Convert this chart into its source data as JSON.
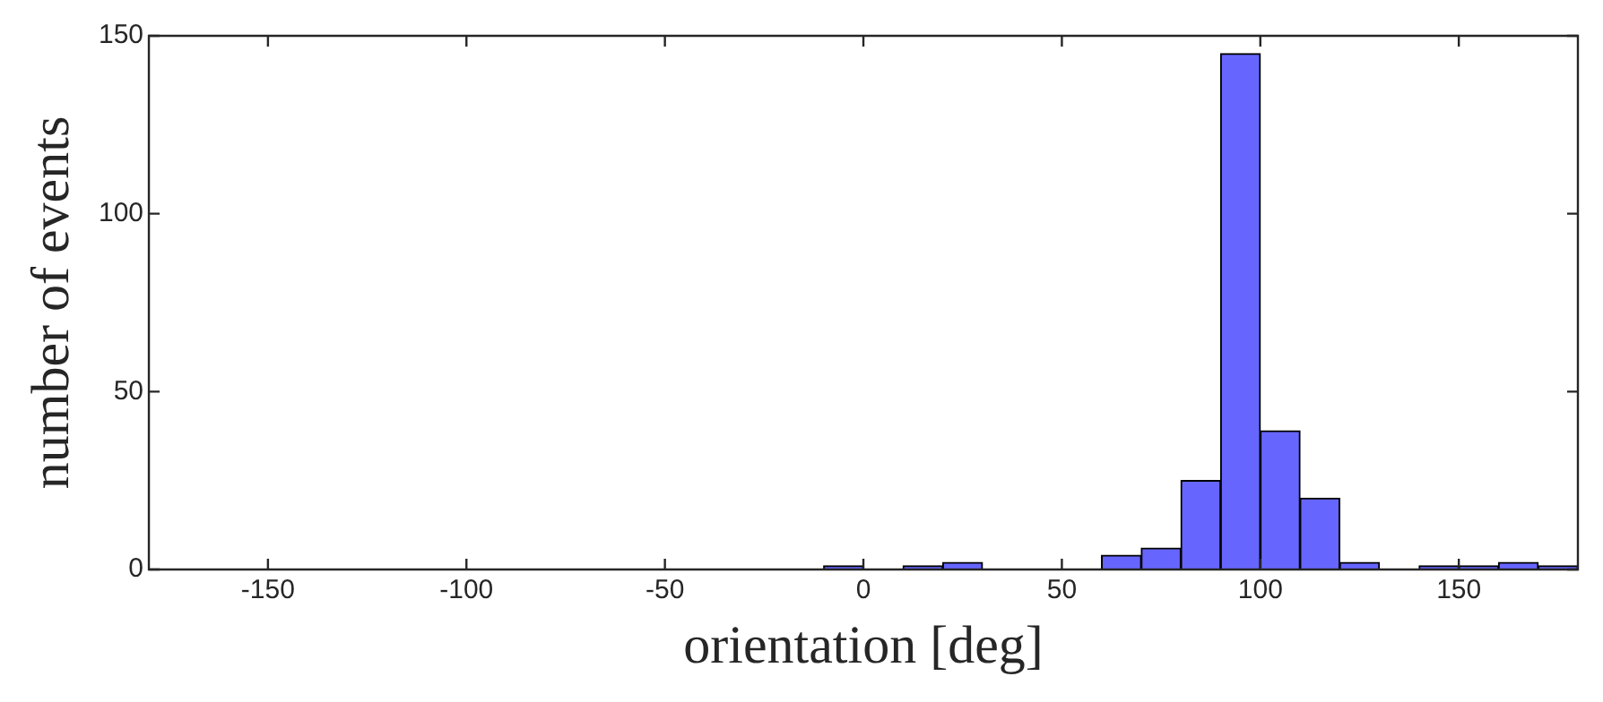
{
  "chart_data": {
    "type": "histogram",
    "xlabel": "orientation [deg]",
    "ylabel": "number of events",
    "bins": [
      -10,
      0,
      10,
      20,
      30,
      40,
      50,
      60,
      70,
      80,
      90,
      100,
      110,
      120,
      130,
      140,
      150,
      160,
      170,
      180
    ],
    "values": [
      1,
      0,
      1,
      2,
      0,
      0,
      0,
      4,
      6,
      25,
      145,
      39,
      20,
      2,
      0,
      1,
      1,
      2,
      1
    ],
    "color": "#6666ff",
    "xlim": [
      -180,
      180
    ],
    "xticks": [
      -150,
      -100,
      -50,
      0,
      50,
      100,
      150
    ],
    "ylim": [
      0,
      150
    ],
    "yticks": [
      0,
      50,
      100,
      150
    ],
    "grid": false,
    "legend": false
  }
}
